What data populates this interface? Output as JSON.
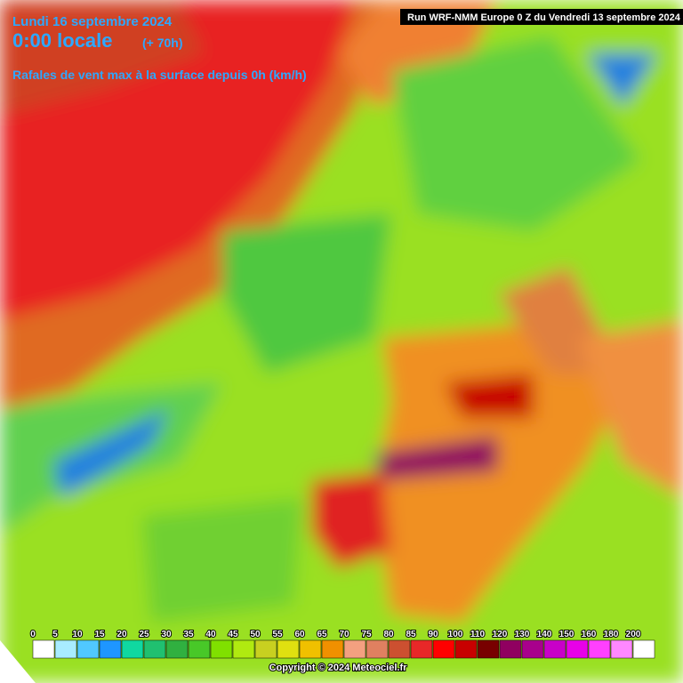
{
  "header": {
    "date": "Lundi 16 septembre 2024",
    "time": "0:00 locale",
    "offset": "(+ 70h)",
    "subtitle": "Rafales de vent max à la surface depuis 0h (km/h)",
    "run": "Run WRF-NMM Europe 0 Z du Vendredi 13 septembre 2024"
  },
  "legend": {
    "ticks": [
      0,
      5,
      10,
      15,
      20,
      25,
      30,
      35,
      40,
      45,
      50,
      55,
      60,
      65,
      70,
      75,
      80,
      85,
      90,
      100,
      110,
      120,
      130,
      140,
      150,
      160,
      180,
      200
    ],
    "colors": [
      "#ffffff",
      "#a8ecff",
      "#50c8ff",
      "#1e96ff",
      "#10d8a0",
      "#20c070",
      "#30b040",
      "#48c828",
      "#80e000",
      "#b0ea10",
      "#c8d020",
      "#e0e010",
      "#f0c000",
      "#f09000",
      "#f4a080",
      "#e08060",
      "#cc5030",
      "#e82828",
      "#ff0000",
      "#c80000",
      "#780000",
      "#900060",
      "#a8008c",
      "#c800c8",
      "#e800e8",
      "#ff40ff",
      "#ff88ff",
      "#ffffff"
    ]
  },
  "footer": {
    "copyright": "Copyright © 2024 Meteociel.fr"
  }
}
